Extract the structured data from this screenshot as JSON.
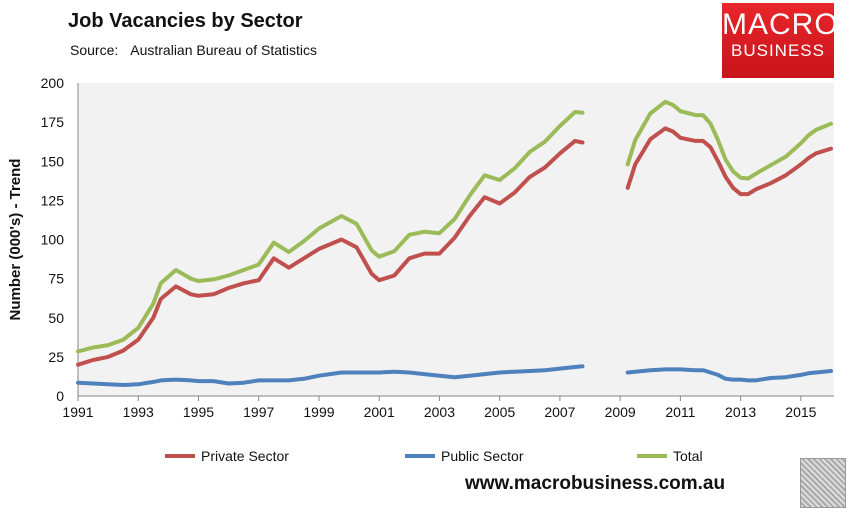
{
  "chart_data": {
    "type": "line",
    "title": "Job Vacancies by Sector",
    "source_label": "Source:",
    "source": "Australian Bureau of Statistics",
    "ylabel": "Number (000's) - Trend",
    "xlabel": "",
    "ylim": [
      0,
      200
    ],
    "yticks": [
      0,
      25,
      50,
      75,
      100,
      125,
      150,
      175,
      200
    ],
    "xlim": [
      1991,
      2016.1
    ],
    "xticks": [
      1991,
      1993,
      1995,
      1997,
      1999,
      2001,
      2003,
      2005,
      2007,
      2009,
      2011,
      2013,
      2015
    ],
    "grid": false,
    "legend": "bottom",
    "segments": [
      {
        "x": [
          1991,
          1991.5,
          1992,
          1992.5,
          1993,
          1993.5,
          1993.75,
          1994.25,
          1994.75,
          1995,
          1995.5,
          1996,
          1996.5,
          1997,
          1997.5,
          1998,
          1998.5,
          1999,
          1999.75,
          2000.25,
          2000.75,
          2001,
          2001.5,
          2002,
          2002.5,
          2003,
          2003.5,
          2004,
          2004.5,
          2005,
          2005.5,
          2006,
          2006.5,
          2007,
          2007.5,
          2007.75
        ],
        "private": [
          20,
          23,
          25,
          29,
          36,
          50,
          62,
          70,
          65,
          64,
          65,
          69,
          72,
          74,
          88,
          82,
          88,
          94,
          100,
          95,
          78,
          74,
          77,
          88,
          91,
          91,
          101,
          115,
          127,
          123,
          130,
          140,
          146,
          155,
          163,
          162
        ],
        "public": [
          8.5,
          8,
          7.5,
          7,
          7.5,
          9,
          10,
          10.5,
          10,
          9.5,
          9.5,
          8,
          8.5,
          10,
          10,
          10,
          11,
          13,
          15,
          15,
          15,
          15,
          15.5,
          15,
          14,
          13,
          12,
          13,
          14,
          15,
          15.5,
          16,
          16.5,
          17.5,
          18.5,
          19
        ],
        "total": [
          28.5,
          31,
          32.5,
          36,
          43.5,
          59,
          72,
          80.5,
          75,
          73.5,
          74.5,
          77,
          80.5,
          84,
          98,
          92,
          99,
          107,
          115,
          110,
          93,
          89,
          92.5,
          103,
          105,
          104,
          113,
          128,
          141,
          138,
          145.5,
          156,
          162.5,
          172.5,
          181.5,
          181
        ]
      },
      {
        "x": [
          2009.25,
          2009.5,
          2010,
          2010.5,
          2010.75,
          2011,
          2011.5,
          2011.75,
          2012,
          2012.25,
          2012.5,
          2012.75,
          2013,
          2013.25,
          2013.5,
          2014,
          2014.5,
          2015,
          2015.25,
          2015.5,
          2016
        ],
        "private": [
          133,
          148,
          164,
          171,
          169,
          165,
          163,
          163,
          159,
          150,
          140,
          133,
          129,
          129,
          132,
          136,
          141,
          148,
          152,
          155,
          158
        ],
        "public": [
          15,
          15.5,
          16.5,
          17,
          17,
          17,
          16.5,
          16.5,
          15,
          13.5,
          11,
          10.5,
          10.5,
          10,
          10,
          11.5,
          12,
          13.5,
          14.5,
          15,
          16
        ],
        "total": [
          148,
          163.5,
          180.5,
          188,
          186,
          182,
          179.5,
          179.5,
          174,
          163.5,
          151,
          143.5,
          139.5,
          139,
          142,
          147.5,
          153,
          161.5,
          166.5,
          170,
          174
        ]
      }
    ],
    "series": [
      {
        "key": "private",
        "name": "Private Sector",
        "color": "#c0504d"
      },
      {
        "key": "public",
        "name": "Public Sector",
        "color": "#4f81bd"
      },
      {
        "key": "total",
        "name": "Total",
        "color": "#9bbb59"
      }
    ]
  },
  "logo": {
    "line1": "MACRO",
    "line2": "BUSINESS"
  },
  "footer": {
    "url": "www.macrobusiness.com.au"
  }
}
